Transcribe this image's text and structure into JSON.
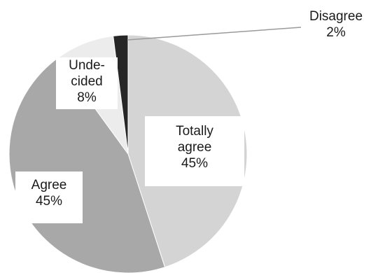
{
  "chart_data": {
    "type": "pie",
    "start_angle_deg": 0,
    "direction": "clockwise",
    "colors": {
      "Totally agree": "#d4d4d4",
      "Agree": "#a8a8a8",
      "Undecided": "#ececec",
      "Disagree": "#262626",
      "edge": "#ffffff"
    },
    "slices": [
      {
        "key": "Totally agree",
        "value": 45,
        "label_lines": [
          "Totally",
          "agree"
        ],
        "percent": "45%"
      },
      {
        "key": "Agree",
        "value": 45,
        "label_lines": [
          "Agree"
        ],
        "percent": "45%"
      },
      {
        "key": "Undecided",
        "value": 8,
        "label_lines": [
          "Unde-",
          "cided"
        ],
        "percent": "8%"
      },
      {
        "key": "Disagree",
        "value": 2,
        "label_lines": [
          "Disagree"
        ],
        "percent": "2%"
      }
    ]
  }
}
